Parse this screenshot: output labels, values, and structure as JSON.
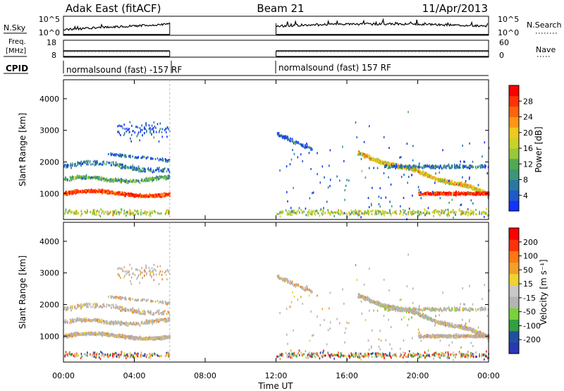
{
  "header": {
    "radar": "Adak East (fitACF)",
    "beam": "Beam 21",
    "date": "11/Apr/2013"
  },
  "panels": {
    "nsky": {
      "left_label": "N.Sky",
      "right_label": "N.Search",
      "left_ticks": [
        "10^5",
        "10^0"
      ],
      "right_ticks": [
        "10^5",
        "10^0"
      ]
    },
    "freq": {
      "left_label_line1": "Freq.",
      "left_label_line2": "[MHz]",
      "right_label": "Nave",
      "left_ticks": [
        "18",
        "8"
      ],
      "right_ticks": [
        "60",
        "0"
      ]
    },
    "cpid": {
      "label": "CPID",
      "segments": [
        "normalsound (fast) -157 RF",
        "normalsound (fast) 157 RF"
      ]
    }
  },
  "chart_data": [
    {
      "type": "heatmap",
      "name": "power",
      "ylabel": "Slant Range [km]",
      "xlabel": "",
      "ylim": [
        180,
        4600
      ],
      "yticks": [
        "1000",
        "2000",
        "3000",
        "4000"
      ],
      "xticks": [
        "00:00",
        "04:00",
        "08:00",
        "12:00",
        "16:00",
        "20:00",
        "00:00"
      ],
      "data_gaps": [
        [
          "06:00",
          "12:00"
        ]
      ],
      "colorbar": {
        "label": "Power [dB]",
        "ticks": [
          "4",
          "8",
          "12",
          "16",
          "20",
          "24",
          "28"
        ],
        "colors": [
          "#1432ff",
          "#1e5ac8",
          "#2a78a0",
          "#3c9678",
          "#50aa50",
          "#96c83c",
          "#c8d228",
          "#f0c81e",
          "#ff9614",
          "#ff640a",
          "#ff3205",
          "#ff0000"
        ]
      }
    },
    {
      "type": "heatmap",
      "name": "velocity",
      "ylabel": "Slant Range [km]",
      "xlabel": "Time UT",
      "ylim": [
        180,
        4600
      ],
      "yticks": [
        "1000",
        "2000",
        "3000",
        "4000"
      ],
      "xticks": [
        "00:00",
        "04:00",
        "08:00",
        "12:00",
        "16:00",
        "20:00",
        "00:00"
      ],
      "data_gaps": [
        [
          "06:00",
          "12:00"
        ]
      ],
      "colorbar": {
        "label": "Velocity [m s⁻¹]",
        "ticks": [
          "200",
          "100",
          "50",
          "15",
          "-15",
          "-50",
          "-100",
          "-200"
        ],
        "colors": [
          "#2838b4",
          "#2050a0",
          "#30a040",
          "#78d23c",
          "#b4b4b4",
          "#c8c8c8",
          "#f0d232",
          "#f0a028",
          "#ff7814",
          "#ff320a",
          "#ff0000"
        ]
      }
    }
  ],
  "xaxis_title": "Time UT"
}
